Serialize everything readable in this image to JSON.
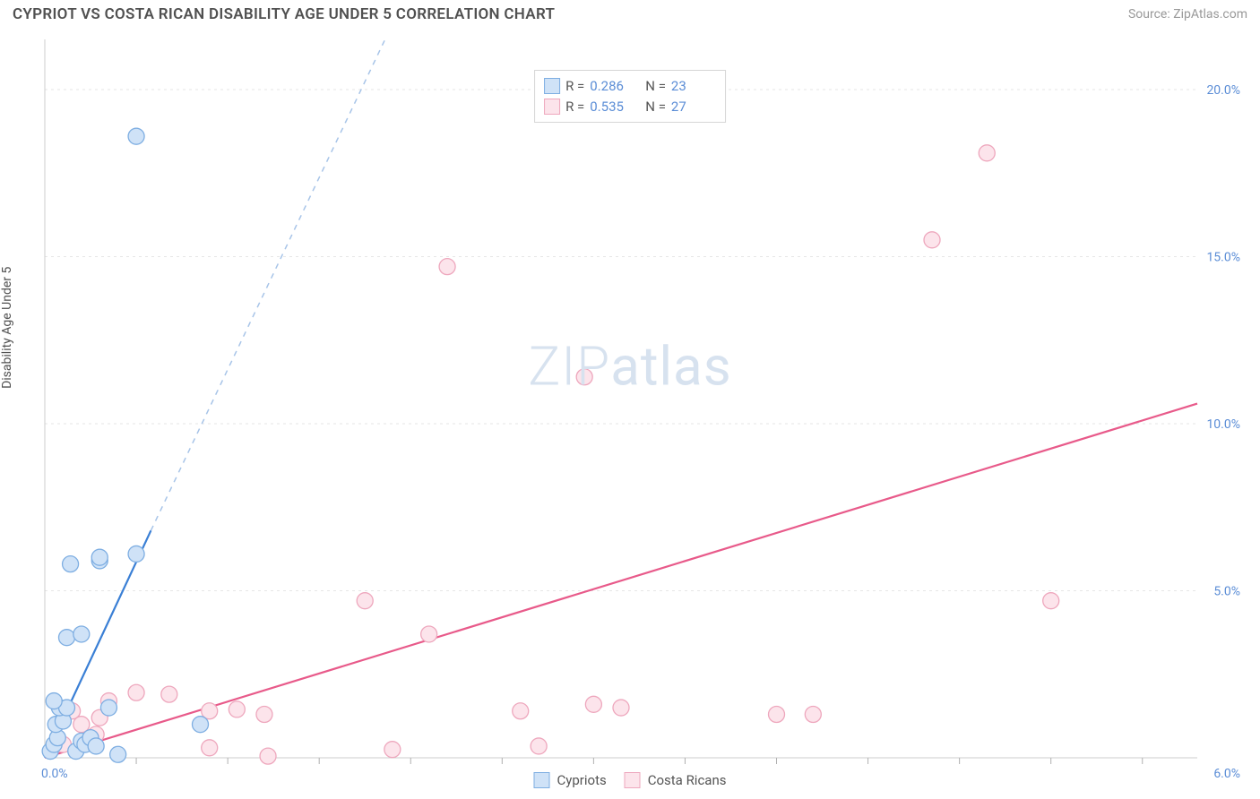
{
  "header": {
    "title": "CYPRIOT VS COSTA RICAN DISABILITY AGE UNDER 5 CORRELATION CHART",
    "source": "Source: ZipAtlas.com"
  },
  "chart": {
    "type": "scatter",
    "ylabel": "Disability Age Under 5",
    "background_color": "#ffffff",
    "grid_color": "#e6e6e6",
    "axis_color": "#cccccc",
    "right_y_axis": {
      "ticks": [
        5.0,
        10.0,
        15.0,
        20.0
      ],
      "tick_labels": [
        "5.0%",
        "10.0%",
        "15.0%",
        "20.0%"
      ],
      "ymin": 0.0,
      "ymax": 21.5,
      "label_color": "#5b8dd6",
      "label_fontsize": 14
    },
    "bottom_x_axis": {
      "xmin": 0.0,
      "xmax": 6.3,
      "label_left": "0.0%",
      "label_right": "6.0%",
      "label_color": "#5b8dd6",
      "label_fontsize": 14,
      "tick_positions": [
        0.5,
        1.0,
        1.5,
        2.0,
        2.5,
        3.0,
        3.5,
        4.0,
        4.5,
        5.0,
        5.5,
        6.0
      ]
    },
    "series": [
      {
        "name": "Cypriots",
        "color_fill": "#cfe2f7",
        "color_stroke": "#7eaee2",
        "marker_radius": 9,
        "stats": {
          "R": "0.286",
          "N": "23"
        },
        "trend": {
          "color_solid": "#3a7fd5",
          "color_dash": "#a7c4e8",
          "solid_from": [
            0.0,
            0.0
          ],
          "solid_to": [
            0.58,
            6.8
          ],
          "dash_to": [
            1.86,
            21.5
          ]
        },
        "points": [
          [
            0.03,
            0.2
          ],
          [
            0.05,
            0.4
          ],
          [
            0.07,
            0.6
          ],
          [
            0.06,
            1.0
          ],
          [
            0.1,
            1.1
          ],
          [
            0.08,
            1.5
          ],
          [
            0.12,
            1.5
          ],
          [
            0.05,
            1.7
          ],
          [
            0.17,
            0.2
          ],
          [
            0.2,
            0.5
          ],
          [
            0.22,
            0.4
          ],
          [
            0.25,
            0.6
          ],
          [
            0.28,
            0.35
          ],
          [
            0.12,
            3.6
          ],
          [
            0.2,
            3.7
          ],
          [
            0.14,
            5.8
          ],
          [
            0.3,
            5.9
          ],
          [
            0.3,
            6.0
          ],
          [
            0.5,
            6.1
          ],
          [
            0.5,
            18.6
          ],
          [
            0.85,
            1.0
          ],
          [
            0.4,
            0.1
          ],
          [
            0.35,
            1.5
          ]
        ]
      },
      {
        "name": "Costa Ricans",
        "color_fill": "#fce4eb",
        "color_stroke": "#eea7bd",
        "marker_radius": 9,
        "stats": {
          "R": "0.535",
          "N": "27"
        },
        "trend": {
          "color_solid": "#e85a8a",
          "from": [
            0.0,
            0.0
          ],
          "to": [
            6.3,
            10.6
          ]
        },
        "points": [
          [
            0.15,
            1.4
          ],
          [
            0.2,
            1.0
          ],
          [
            0.3,
            1.2
          ],
          [
            0.28,
            0.7
          ],
          [
            0.35,
            1.7
          ],
          [
            0.5,
            1.95
          ],
          [
            0.68,
            1.9
          ],
          [
            0.9,
            1.4
          ],
          [
            0.9,
            0.3
          ],
          [
            1.05,
            1.45
          ],
          [
            1.2,
            1.3
          ],
          [
            1.22,
            0.05
          ],
          [
            1.75,
            4.7
          ],
          [
            1.9,
            0.25
          ],
          [
            2.1,
            3.7
          ],
          [
            2.2,
            14.7
          ],
          [
            2.6,
            1.4
          ],
          [
            2.7,
            0.35
          ],
          [
            2.95,
            11.4
          ],
          [
            3.0,
            1.6
          ],
          [
            3.15,
            1.5
          ],
          [
            4.0,
            1.3
          ],
          [
            4.2,
            1.3
          ],
          [
            4.85,
            15.5
          ],
          [
            5.15,
            18.1
          ],
          [
            5.5,
            4.7
          ],
          [
            0.1,
            0.4
          ]
        ]
      }
    ],
    "legend_bottom": [
      "Cypriots",
      "Costa Ricans"
    ],
    "watermark": "ZIPatlas"
  }
}
